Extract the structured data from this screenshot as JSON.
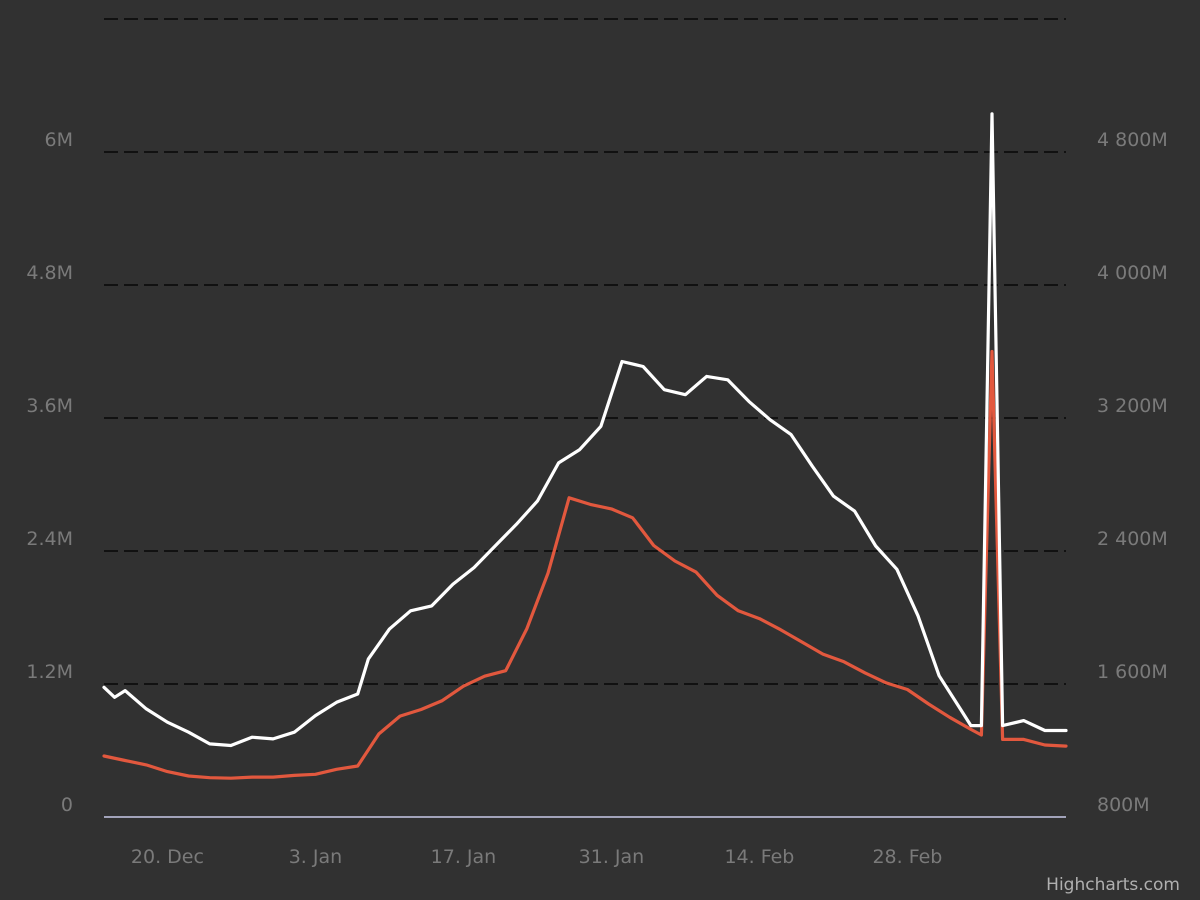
{
  "chart_data": {
    "type": "line",
    "title": "",
    "xlabel": "",
    "credits": "Highcharts.com",
    "x_ticks": [
      "20. Dec",
      "3. Jan",
      "17. Jan",
      "31. Jan",
      "14. Feb",
      "28. Feb"
    ],
    "x_tick_dates": [
      "2020-12-20",
      "2021-01-03",
      "2021-01-17",
      "2021-01-31",
      "2021-02-14",
      "2021-02-28"
    ],
    "x_range": [
      "2020-12-14",
      "2021-03-15"
    ],
    "y_left": {
      "ticks": [
        "0",
        "1.2M",
        "2.4M",
        "3.6M",
        "4.8M",
        "6M"
      ],
      "range": [
        0,
        7200000
      ]
    },
    "y_right": {
      "ticks": [
        "800M",
        "1 600M",
        "2 400M",
        "3 200M",
        "4 000M",
        "4 800M"
      ],
      "range": [
        800000000,
        5600000000
      ]
    },
    "grid": true,
    "legend": false,
    "series": [
      {
        "axis": "left",
        "color": "#e2583e",
        "values": [
          [
            "2020-12-14",
            550000
          ],
          [
            "2020-12-16",
            510000
          ],
          [
            "2020-12-18",
            470000
          ],
          [
            "2020-12-20",
            410000
          ],
          [
            "2020-12-22",
            370000
          ],
          [
            "2020-12-24",
            355000
          ],
          [
            "2020-12-26",
            350000
          ],
          [
            "2020-12-28",
            360000
          ],
          [
            "2020-12-30",
            360000
          ],
          [
            "2021-01-01",
            375000
          ],
          [
            "2021-01-03",
            385000
          ],
          [
            "2021-01-05",
            430000
          ],
          [
            "2021-01-07",
            460000
          ],
          [
            "2021-01-09",
            750000
          ],
          [
            "2021-01-11",
            910000
          ],
          [
            "2021-01-13",
            970000
          ],
          [
            "2021-01-15",
            1050000
          ],
          [
            "2021-01-17",
            1180000
          ],
          [
            "2021-01-19",
            1270000
          ],
          [
            "2021-01-21",
            1320000
          ],
          [
            "2021-01-23",
            1700000
          ],
          [
            "2021-01-25",
            2200000
          ],
          [
            "2021-01-27",
            2880000
          ],
          [
            "2021-01-29",
            2820000
          ],
          [
            "2021-01-31",
            2780000
          ],
          [
            "2021-02-02",
            2700000
          ],
          [
            "2021-02-04",
            2450000
          ],
          [
            "2021-02-06",
            2310000
          ],
          [
            "2021-02-08",
            2210000
          ],
          [
            "2021-02-10",
            2000000
          ],
          [
            "2021-02-12",
            1860000
          ],
          [
            "2021-02-14",
            1790000
          ],
          [
            "2021-02-16",
            1690000
          ],
          [
            "2021-02-18",
            1580000
          ],
          [
            "2021-02-20",
            1470000
          ],
          [
            "2021-02-22",
            1400000
          ],
          [
            "2021-02-24",
            1300000
          ],
          [
            "2021-02-26",
            1210000
          ],
          [
            "2021-02-28",
            1150000
          ],
          [
            "2021-03-02",
            1020000
          ],
          [
            "2021-03-04",
            900000
          ],
          [
            "2021-03-06",
            790000
          ],
          [
            "2021-03-07",
            740000
          ],
          [
            "2021-03-08",
            4200000
          ],
          [
            "2021-03-09",
            700000
          ],
          [
            "2021-03-11",
            700000
          ],
          [
            "2021-03-13",
            650000
          ],
          [
            "2021-03-15",
            640000
          ]
        ]
      },
      {
        "axis": "right",
        "color": "#ffffff",
        "values": [
          [
            "2020-12-14",
            1580000000
          ],
          [
            "2020-12-15",
            1520000000
          ],
          [
            "2020-12-16",
            1560000000
          ],
          [
            "2020-12-18",
            1450000000
          ],
          [
            "2020-12-20",
            1370000000
          ],
          [
            "2020-12-22",
            1310000000
          ],
          [
            "2020-12-24",
            1240000000
          ],
          [
            "2020-12-26",
            1230000000
          ],
          [
            "2020-12-28",
            1280000000
          ],
          [
            "2020-12-30",
            1270000000
          ],
          [
            "2021-01-01",
            1310000000
          ],
          [
            "2021-01-03",
            1410000000
          ],
          [
            "2021-01-05",
            1490000000
          ],
          [
            "2021-01-07",
            1540000000
          ],
          [
            "2021-01-08",
            1750000000
          ],
          [
            "2021-01-10",
            1930000000
          ],
          [
            "2021-01-12",
            2040000000
          ],
          [
            "2021-01-14",
            2070000000
          ],
          [
            "2021-01-16",
            2200000000
          ],
          [
            "2021-01-18",
            2300000000
          ],
          [
            "2021-01-20",
            2430000000
          ],
          [
            "2021-01-22",
            2560000000
          ],
          [
            "2021-01-24",
            2700000000
          ],
          [
            "2021-01-26",
            2930000000
          ],
          [
            "2021-01-28",
            3010000000
          ],
          [
            "2021-01-30",
            3150000000
          ],
          [
            "2021-02-01",
            3540000000
          ],
          [
            "2021-02-03",
            3510000000
          ],
          [
            "2021-02-05",
            3370000000
          ],
          [
            "2021-02-07",
            3340000000
          ],
          [
            "2021-02-09",
            3450000000
          ],
          [
            "2021-02-11",
            3430000000
          ],
          [
            "2021-02-13",
            3300000000
          ],
          [
            "2021-02-15",
            3190000000
          ],
          [
            "2021-02-17",
            3100000000
          ],
          [
            "2021-02-19",
            2910000000
          ],
          [
            "2021-02-21",
            2730000000
          ],
          [
            "2021-02-23",
            2640000000
          ],
          [
            "2021-02-25",
            2430000000
          ],
          [
            "2021-02-27",
            2290000000
          ],
          [
            "2021-03-01",
            2010000000
          ],
          [
            "2021-03-03",
            1650000000
          ],
          [
            "2021-03-05",
            1450000000
          ],
          [
            "2021-03-06",
            1350000000
          ],
          [
            "2021-03-07",
            1350000000
          ],
          [
            "2021-03-08",
            5030000000
          ],
          [
            "2021-03-09",
            1350000000
          ],
          [
            "2021-03-11",
            1380000000
          ],
          [
            "2021-03-13",
            1320000000
          ],
          [
            "2021-03-15",
            1320000000
          ]
        ]
      }
    ]
  },
  "colors": {
    "background": "#313131",
    "grid": "#111111",
    "axis_line": "#c7c9e8",
    "label": "#7a7a7a",
    "credits": "#b0b0b0"
  }
}
